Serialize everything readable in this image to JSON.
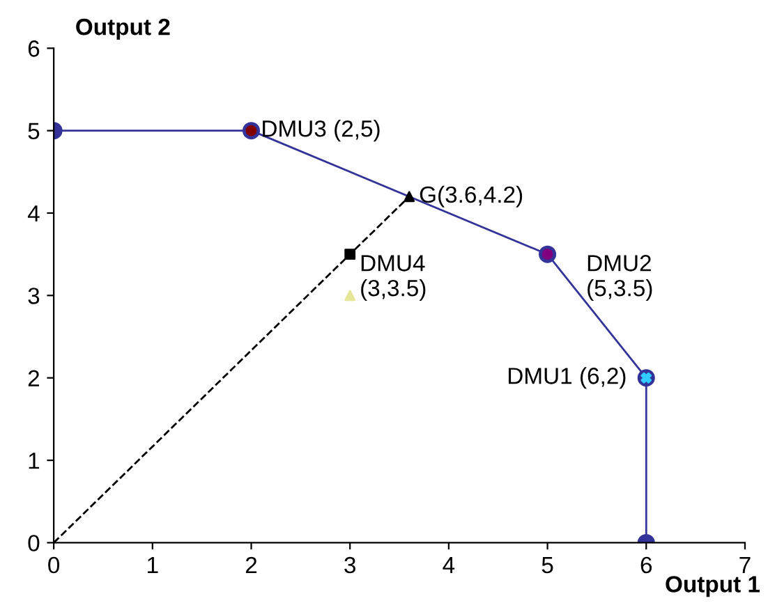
{
  "chart_data": {
    "type": "scatter",
    "xlabel": "Output 1",
    "ylabel": "Output 2",
    "xlim": [
      0,
      7
    ],
    "ylim": [
      0,
      6
    ],
    "xticks": [
      0,
      1,
      2,
      3,
      4,
      5,
      6,
      7
    ],
    "yticks": [
      0,
      1,
      2,
      3,
      4,
      5,
      6
    ],
    "grid": false,
    "legend": false,
    "series": [
      {
        "type": "line",
        "color": "#333399",
        "marker": "circle",
        "line_style": "solid",
        "x": [
          0,
          2,
          5,
          6,
          6
        ],
        "values": [
          5,
          5,
          3.5,
          2,
          0
        ]
      },
      {
        "type": "line",
        "color": "#000000",
        "marker": "none",
        "line_style": "dashed",
        "x": [
          0,
          3.6
        ],
        "values": [
          0,
          4.2
        ]
      },
      {
        "color": "#800000",
        "marker": "circle",
        "x": [
          2
        ],
        "values": [
          5
        ]
      },
      {
        "color": "#800080",
        "marker": "circle",
        "x": [
          5
        ],
        "values": [
          3.5
        ]
      },
      {
        "color": "#33ccff",
        "marker": "cross",
        "x": [
          6
        ],
        "values": [
          2
        ]
      },
      {
        "color": "#000000",
        "marker": "triangle",
        "x": [
          3.6
        ],
        "values": [
          4.2
        ]
      },
      {
        "color": "#000000",
        "marker": "square",
        "x": [
          3
        ],
        "values": [
          3.5
        ]
      },
      {
        "color": "#e6e699",
        "marker": "triangle",
        "x": [
          3
        ],
        "values": [
          3
        ]
      }
    ],
    "annotations": [
      {
        "text": "DMU3 (2,5)",
        "x": 2,
        "y": 5
      },
      {
        "text": "G(3.6,4.2)",
        "x": 3.6,
        "y": 4.2
      },
      {
        "text": "DMU4\n(3,3.5)",
        "x": 3,
        "y": 3.5
      },
      {
        "text": "DMU2\n(5,3.5)",
        "x": 5,
        "y": 3.5
      },
      {
        "text": "DMU1 (6,2)",
        "x": 6,
        "y": 2
      }
    ]
  }
}
